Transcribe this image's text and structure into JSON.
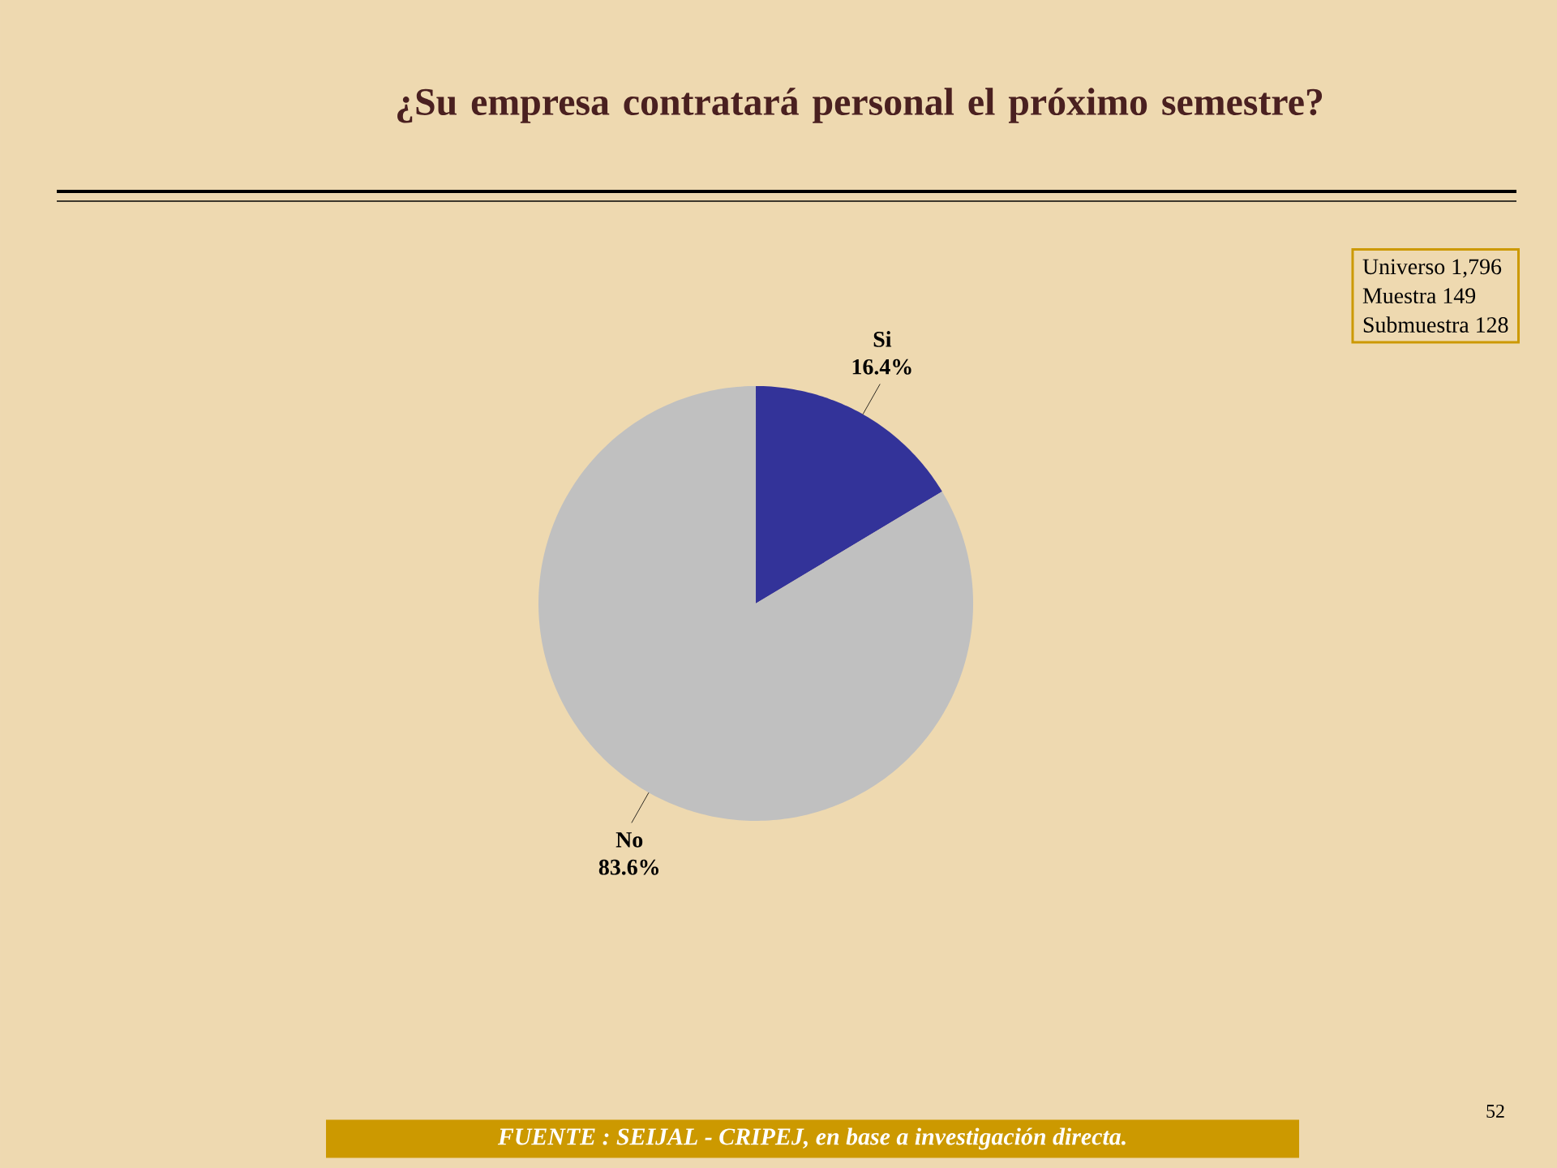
{
  "chart_data": {
    "type": "pie",
    "title": "¿Su empresa contratará personal  el próximo semestre?",
    "categories": [
      "Si",
      "No"
    ],
    "values": [
      16.4,
      83.6
    ],
    "value_labels": [
      "16.4%",
      "83.6%"
    ],
    "colors": [
      "#333399",
      "#c0c0c0"
    ],
    "annotations": [
      "Universo 1,796",
      "Muestra 149",
      "Submuestra 128",
      "FUENTE : SEIJAL - CRIPEJ, en base a investigación directa.",
      "52"
    ]
  }
}
